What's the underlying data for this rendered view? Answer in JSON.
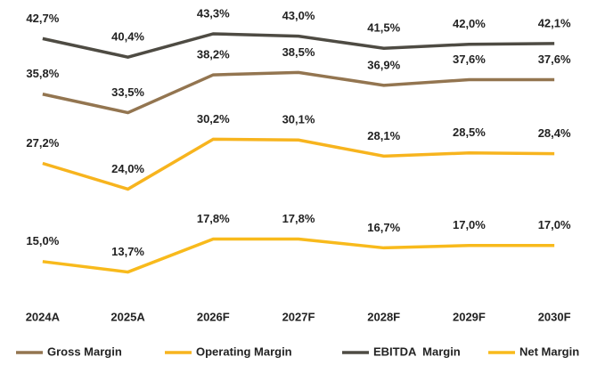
{
  "chart_data": {
    "type": "line",
    "categories": [
      "2024A",
      "2025A",
      "2026F",
      "2027F",
      "2028F",
      "2029F",
      "2030F"
    ],
    "series": [
      {
        "name": "Gross Margin",
        "color": "#937550",
        "values": [
          35.8,
          33.5,
          38.2,
          38.5,
          36.9,
          37.6,
          37.6
        ],
        "value_labels": [
          "35,8%",
          "33,5%",
          "38,2%",
          "38,5%",
          "36,9%",
          "37,6%",
          "37,6%"
        ]
      },
      {
        "name": "Operating Margin",
        "color": "#F7B41E",
        "values": [
          27.2,
          24.0,
          30.2,
          30.1,
          28.1,
          28.5,
          28.4
        ],
        "value_labels": [
          "27,2%",
          "24,0%",
          "30,2%",
          "30,1%",
          "28,1%",
          "28,5%",
          "28,4%"
        ]
      },
      {
        "name": "EBITDA  Margin",
        "color": "#4E4B43",
        "values": [
          42.7,
          40.4,
          43.3,
          43.0,
          41.5,
          42.0,
          42.1
        ],
        "value_labels": [
          "42,7%",
          "40,4%",
          "43,3%",
          "43,0%",
          "41,5%",
          "42,0%",
          "42,1%"
        ]
      },
      {
        "name": "Net Margin",
        "color": "#F8BA1C",
        "values": [
          15.0,
          13.7,
          17.8,
          17.8,
          16.7,
          17.0,
          17.0
        ],
        "value_labels": [
          "15,0%",
          "13,7%",
          "17,8%",
          "17,8%",
          "16,7%",
          "17,0%",
          "17,0%"
        ]
      }
    ],
    "ylim": [
      10,
      47.5
    ]
  }
}
